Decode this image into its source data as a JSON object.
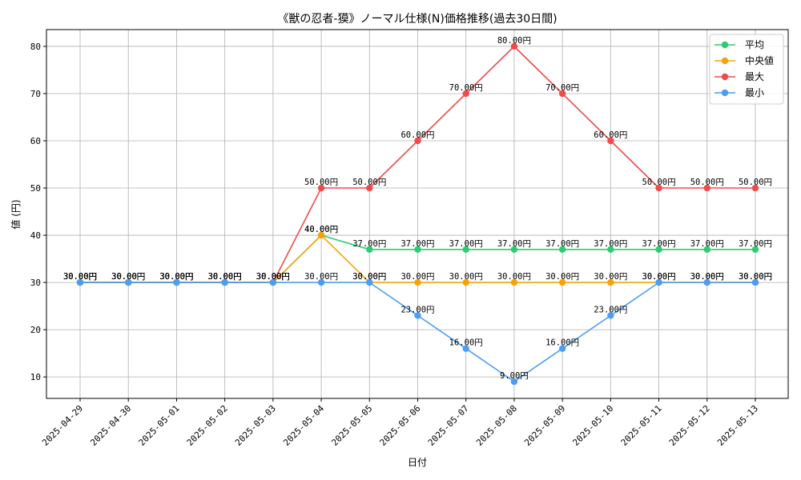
{
  "chart_data": {
    "type": "line",
    "title": "《獣の忍者-獏》ノーマル仕様(N)価格推移(過去30日間)",
    "xlabel": "日付",
    "ylabel": "値 (円)",
    "ylim": [
      5.45,
      83.55
    ],
    "yticks": [
      10,
      20,
      30,
      40,
      50,
      60,
      70,
      80
    ],
    "grid": true,
    "legend_position": "top-right",
    "label_suffix": "円",
    "categories": [
      "2025-04-29",
      "2025-04-30",
      "2025-05-01",
      "2025-05-02",
      "2025-05-03",
      "2025-05-04",
      "2025-05-05",
      "2025-05-06",
      "2025-05-07",
      "2025-05-08",
      "2025-05-09",
      "2025-05-10",
      "2025-05-11",
      "2025-05-12",
      "2025-05-13"
    ],
    "series": [
      {
        "name": "平均",
        "color": "#2ecc71",
        "values": [
          30,
          30,
          30,
          30,
          30,
          40,
          37,
          37,
          37,
          37,
          37,
          37,
          37,
          37,
          37
        ]
      },
      {
        "name": "中央値",
        "color": "#f5a30a",
        "values": [
          30,
          30,
          30,
          30,
          30,
          40,
          30,
          30,
          30,
          30,
          30,
          30,
          30,
          30,
          30
        ]
      },
      {
        "name": "最大",
        "color": "#f04a4a",
        "values": [
          30,
          30,
          30,
          30,
          30,
          50,
          50,
          60,
          70,
          80,
          70,
          60,
          50,
          50,
          50
        ]
      },
      {
        "name": "最小",
        "color": "#4d9df0",
        "values": [
          30,
          30,
          30,
          30,
          30,
          30,
          30,
          23,
          16,
          9,
          16,
          23,
          30,
          30,
          30
        ]
      }
    ]
  }
}
